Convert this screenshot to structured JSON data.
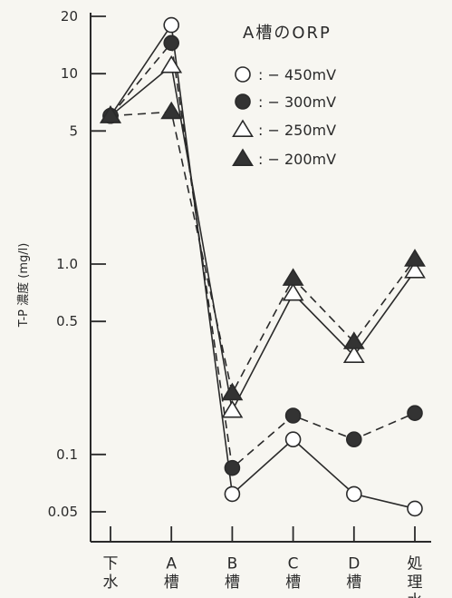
{
  "chart_data": {
    "type": "line",
    "ylabel": "T-P 濃度 (mg/l)",
    "yscale": "log",
    "ylim": [
      0.03,
      20
    ],
    "yticks": [
      {
        "value": 20,
        "label": "20"
      },
      {
        "value": 10,
        "label": "10"
      },
      {
        "value": 5,
        "label": "5"
      },
      {
        "value": 1.0,
        "label": "1.0"
      },
      {
        "value": 0.5,
        "label": "0.5"
      },
      {
        "value": 0.1,
        "label": "0.1"
      },
      {
        "value": 0.05,
        "label": "0.05"
      }
    ],
    "categories": [
      "下水",
      "A槽",
      "B槽",
      "C槽",
      "D槽",
      "処理水"
    ],
    "legend": {
      "title": "A槽のORP",
      "placement": "top-right"
    },
    "series": [
      {
        "name": ": − 450mV",
        "marker": "open-circle",
        "line": "solid",
        "values": [
          6.0,
          18.0,
          0.062,
          0.12,
          0.062,
          0.052
        ]
      },
      {
        "name": ": − 300mV",
        "marker": "filled-circle",
        "line": "dashed",
        "values": [
          6.0,
          14.5,
          0.085,
          0.16,
          0.12,
          0.165
        ]
      },
      {
        "name": ": − 250mV",
        "marker": "open-triangle",
        "line": "solid",
        "values": [
          6.0,
          11.0,
          0.17,
          0.7,
          0.33,
          0.92
        ]
      },
      {
        "name": ": − 200mV",
        "marker": "filled-triangle",
        "line": "dashed",
        "values": [
          6.0,
          6.3,
          0.21,
          0.84,
          0.39,
          1.06
        ]
      }
    ]
  }
}
